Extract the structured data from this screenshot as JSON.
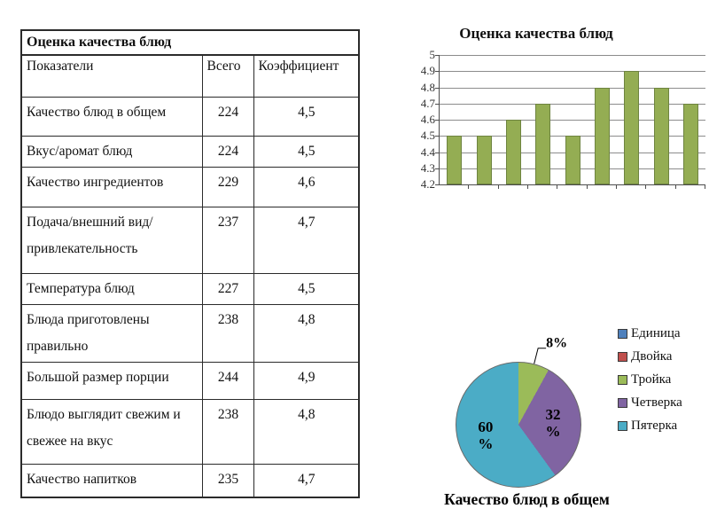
{
  "table": {
    "title": "Оценка качества блюд",
    "columns": [
      "Показатели",
      "Всего",
      "Коэффициент"
    ],
    "rows": [
      [
        "Качество блюд в общем",
        "224",
        "4,5"
      ],
      [
        "Вкус/аромат блюд",
        "224",
        "4,5"
      ],
      [
        "Качество ингредиентов",
        "229",
        "4,6"
      ],
      [
        "Подача/внешний вид/привлекательность",
        "237",
        "4,7"
      ],
      [
        "Температура блюд",
        "227",
        "4,5"
      ],
      [
        "Блюда приготовлены правильно",
        "238",
        "4,8"
      ],
      [
        "Большой размер порции",
        "244",
        "4,9"
      ],
      [
        "Блюдо выглядит свежим и свежее на вкус",
        "238",
        "4,8"
      ],
      [
        "Качество напитков",
        "235",
        "4,7"
      ]
    ]
  },
  "chart_data": [
    {
      "type": "bar",
      "title": "Оценка качества блюд",
      "categories": [
        "Качество блюд в общем",
        "Вкус/аромат блюд",
        "Качество ингредиентов",
        "Подача/внешний вид/привлекатель",
        "Температура блюд",
        "Блюда приготовлены правильно",
        "Большой размер порции",
        "Блюдо выглядит свежим и свежее н",
        "Качество напитков"
      ],
      "values": [
        4.5,
        4.5,
        4.6,
        4.7,
        4.5,
        4.8,
        4.9,
        4.8,
        4.7
      ],
      "xlabel": "",
      "ylabel": "",
      "ylim": [
        4.2,
        5
      ],
      "yticks": [
        5,
        4.9,
        4.8,
        4.7,
        4.6,
        4.5,
        4.4,
        4.3,
        4.2
      ],
      "ytick_labels": [
        "5",
        "4.9",
        "4.8",
        "4.7",
        "4.6",
        "4.5",
        "4.4",
        "4.3",
        "4.2"
      ],
      "grid": true,
      "legend_position": "none",
      "bar_color": "#94ad53"
    },
    {
      "type": "pie",
      "title": "Качество блюд в общем",
      "legend_position": "right",
      "slices": [
        {
          "label": "Единица",
          "value": 0,
          "color": "#4f81bd",
          "data_label": ""
        },
        {
          "label": "Двойка",
          "value": 0,
          "color": "#c0504d",
          "data_label": ""
        },
        {
          "label": "Тройка",
          "value": 8,
          "color": "#9bbb59",
          "data_label": "8%"
        },
        {
          "label": "Четверка",
          "value": 32,
          "color": "#8064a2",
          "data_label": "32 %"
        },
        {
          "label": "Пятерка",
          "value": 60,
          "color": "#4bacc6",
          "data_label": "60 %"
        }
      ]
    }
  ]
}
